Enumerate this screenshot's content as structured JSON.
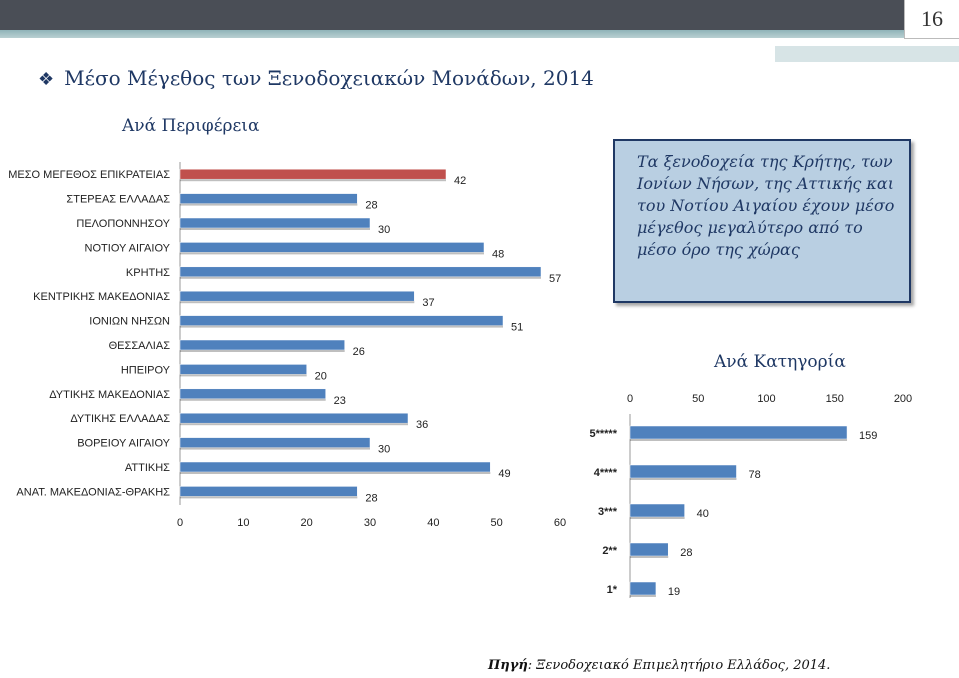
{
  "page_number": "16",
  "title": "Μέσο Μέγεθος των Ξενοδοχειακών Μονάδων, 2014",
  "subtitle_region": "Ανά Περιφέρεια",
  "subtitle_category": "Ανά Κατηγορία",
  "callout_text": "Τα ξενοδοχεία της Κρήτης, των Ιονίων Νήσων, της Αττικής και του Νοτίου Αιγαίου έχουν μέσο μέγεθος μεγαλύτερο από το μέσο όρο της χώρας",
  "source_label": "Πηγή",
  "source_text": ": Ξενοδοχειακό Επιμελητήριο Ελλάδος, 2014.",
  "colors": {
    "blue_bar": "#4f81bd",
    "red_bar": "#c0504d",
    "title": "#1f3864"
  },
  "chart_data": [
    {
      "type": "bar",
      "orientation": "horizontal",
      "categories": [
        "ΜΕΣΟ ΜΕΓΕΘΟΣ ΕΠΙΚΡΑΤΕΙΑΣ",
        "ΣΤΕΡΕΑΣ ΕΛΛΑΔΑΣ",
        "ΠΕΛΟΠΟΝΝΗΣΟΥ",
        "ΝΟΤΙΟΥ ΑΙΓΑΙΟΥ",
        "ΚΡΗΤΗΣ",
        "ΚΕΝΤΡΙΚΗΣ ΜΑΚΕΔΟΝΙΑΣ",
        "ΙΟΝΙΩΝ ΝΗΣΩΝ",
        "ΘΕΣΣΑΛΙΑΣ",
        "ΗΠΕΙΡΟΥ",
        "ΔΥΤΙΚΗΣ ΜΑΚΕΔΟΝΙΑΣ",
        "ΔΥΤΙΚΗΣ ΕΛΛΑΔΑΣ",
        "ΒΟΡΕΙΟΥ ΑΙΓΑΙΟΥ",
        "ΑΤΤΙΚΗΣ",
        "ΑΝΑΤ. ΜΑΚΕΔΟΝΙΑΣ-ΘΡΑΚΗΣ"
      ],
      "values": [
        42,
        28,
        30,
        48,
        57,
        37,
        51,
        26,
        20,
        23,
        36,
        30,
        49,
        28
      ],
      "highlight_index": 0,
      "xlim": [
        0,
        60
      ],
      "xticks": [
        "0",
        "10",
        "20",
        "30",
        "40",
        "50",
        "60"
      ]
    },
    {
      "type": "bar",
      "orientation": "horizontal",
      "categories": [
        "5*****",
        "4****",
        "3***",
        "2**",
        "1*"
      ],
      "values": [
        159,
        78,
        40,
        28,
        19
      ],
      "xlim": [
        0,
        200
      ],
      "xticks": [
        "0",
        "50",
        "100",
        "150",
        "200"
      ]
    }
  ]
}
